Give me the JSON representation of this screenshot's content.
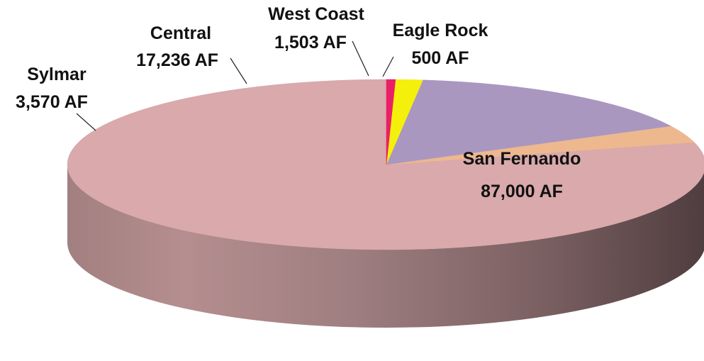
{
  "chart_data": {
    "type": "pie",
    "style": "3d",
    "slices": [
      {
        "name": "San Fernando",
        "value": 87000,
        "value_label": "87,000 AF",
        "color": "#d9a9ab"
      },
      {
        "name": "Sylmar",
        "value": 3570,
        "value_label": "3,570 AF",
        "color": "#eeb88e"
      },
      {
        "name": "Central",
        "value": 17236,
        "value_label": "17,236 AF",
        "color": "#a997c0"
      },
      {
        "name": "West Coast",
        "value": 1503,
        "value_label": "1,503 AF",
        "color": "#f4f00c"
      },
      {
        "name": "Eagle Rock",
        "value": 500,
        "value_label": "500 AF",
        "color": "#ea1f66"
      }
    ],
    "title": "",
    "legend": "none"
  }
}
